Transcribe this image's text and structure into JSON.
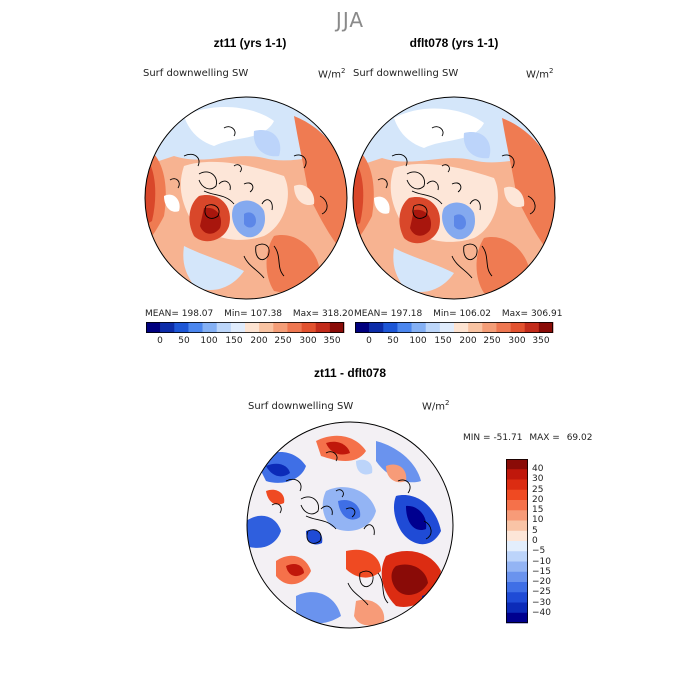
{
  "season": "JJA",
  "panels": [
    {
      "title": "zt11 (yrs 1-1)",
      "variable": "Surf downwelling SW",
      "units": "W/m",
      "units_exp": "2",
      "mean_label": "MEAN=",
      "mean": "198.07",
      "min_label": "Min=",
      "min": "107.38",
      "max_label": "Max=",
      "max": "318.20"
    },
    {
      "title": "dflt078 (yrs 1-1)",
      "variable": "Surf downwelling SW",
      "units": "W/m",
      "units_exp": "2",
      "mean_label": "MEAN=",
      "mean": "197.18",
      "min_label": "Min=",
      "min": "106.02",
      "max_label": "Max=",
      "max": "306.91"
    }
  ],
  "colorbar_ticks": [
    "0",
    "50",
    "100",
    "150",
    "200",
    "250",
    "300",
    "350"
  ],
  "colorbar_colors": [
    "#00007f",
    "#0c2ca8",
    "#1d56d6",
    "#4b86ee",
    "#84b0f4",
    "#bcd6fa",
    "#e0ecfc",
    "#fde3d1",
    "#f9c3a2",
    "#f49d77",
    "#ee7751",
    "#e2522f",
    "#c32c1b",
    "#8a0b07"
  ],
  "diff_panel": {
    "title": "zt11 - dflt078",
    "variable": "Surf downwelling SW",
    "units": "W/m",
    "units_exp": "2",
    "min_label": "MIN =",
    "min": "-51.71",
    "max_label": "MAX =",
    "max": "69.02",
    "levels": [
      "40",
      "30",
      "25",
      "20",
      "15",
      "10",
      "5",
      "0",
      "−5",
      "−10",
      "−15",
      "−20",
      "−25",
      "−30",
      "−40"
    ],
    "colors": [
      "#8a0b07",
      "#c0170b",
      "#dc2c12",
      "#ef4a22",
      "#f5714a",
      "#f79b78",
      "#f9c4a6",
      "#fde6d8",
      "#e3eefc",
      "#bcd4fa",
      "#93b4f4",
      "#6a93ee",
      "#3f6fe6",
      "#1f4bd6",
      "#0c2bb8",
      "#00008f"
    ]
  },
  "map_fill_colors": {
    "sea_light_blue": "#d4e6fa",
    "cream": "#fde6d8",
    "peach": "#f7b391",
    "orange": "#ef7b52",
    "red": "#d9472a",
    "blue": "#5c87e8",
    "dark_blue": "#1f3fc8",
    "dark_red": "#a8160d"
  }
}
